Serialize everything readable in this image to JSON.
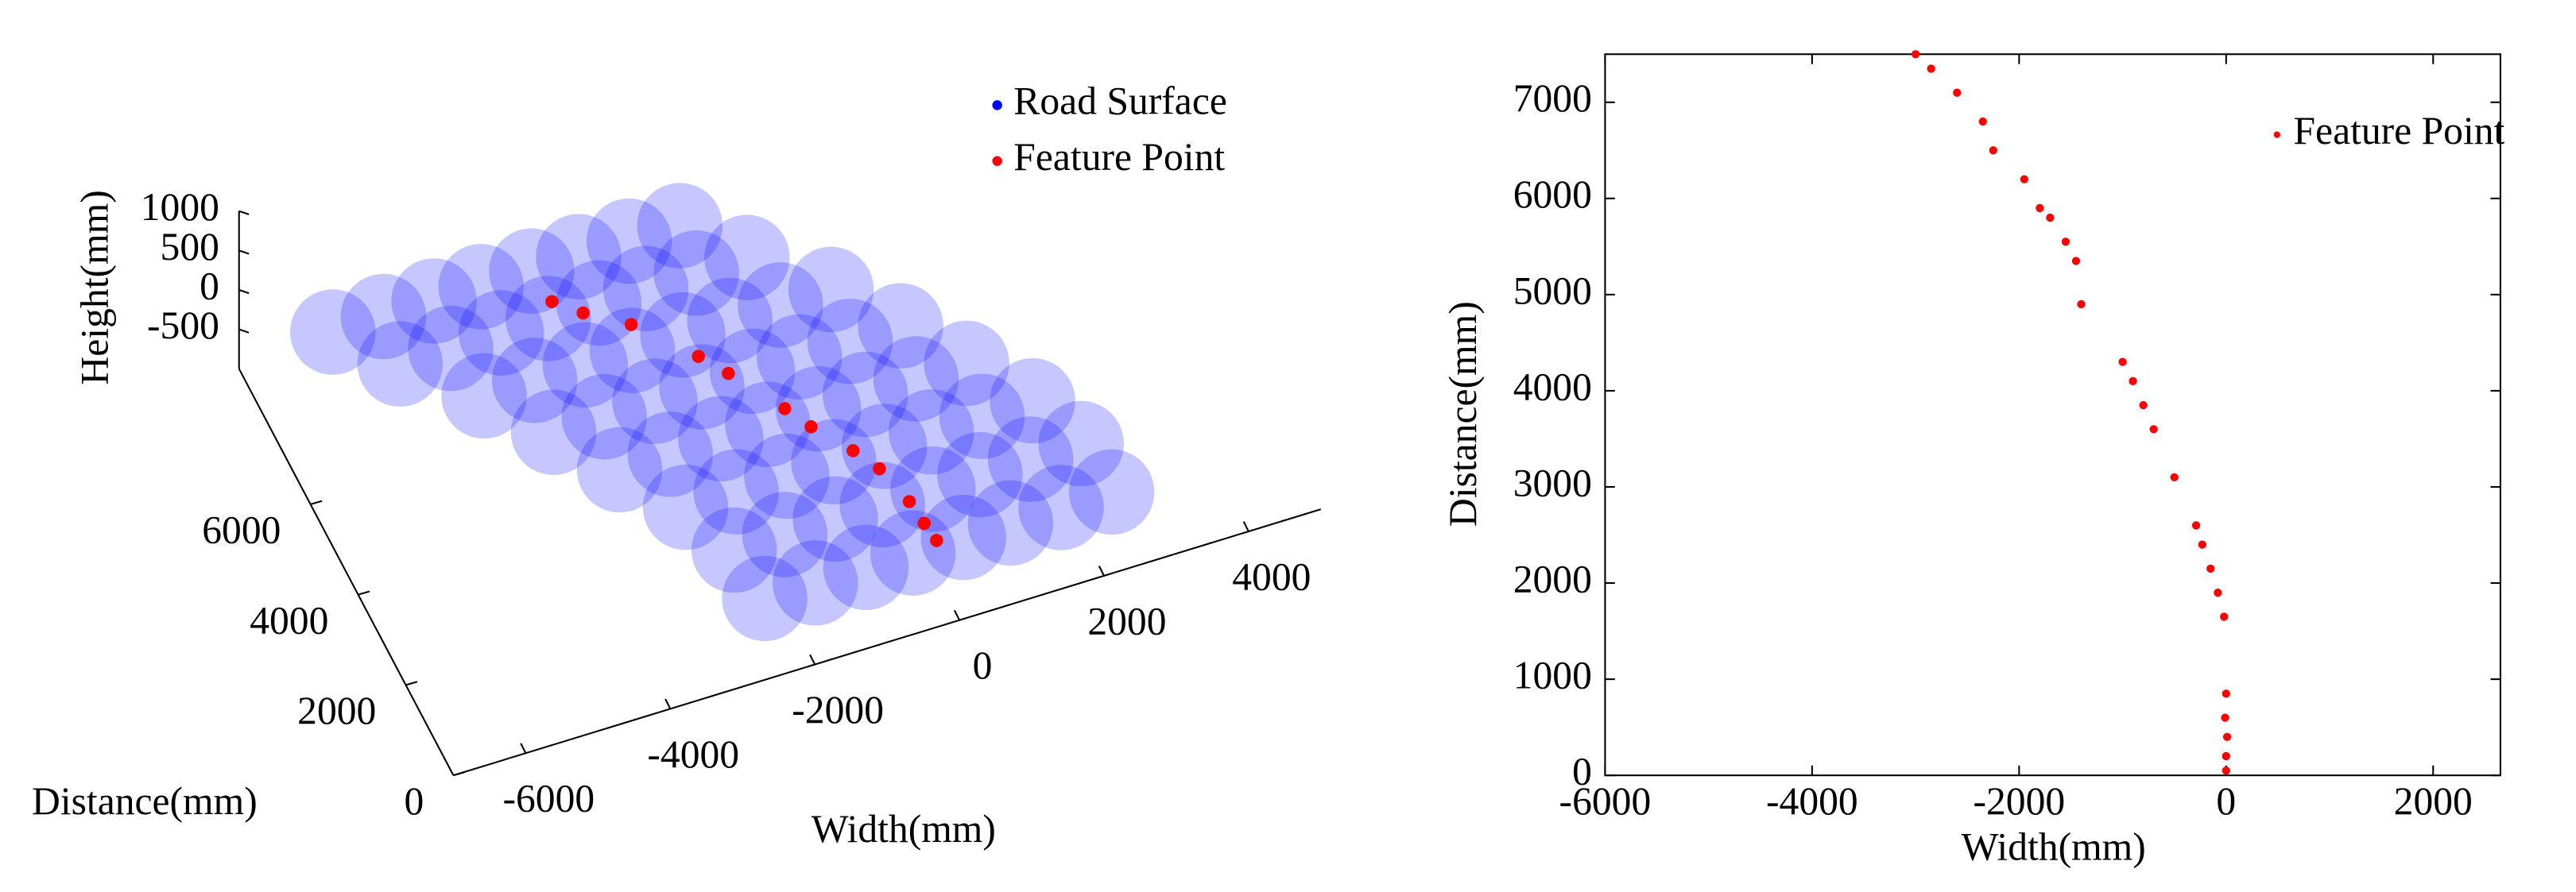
{
  "chart_data": [
    {
      "type": "scatter3d",
      "xlabel": "Width(mm)",
      "ylabel": "Distance(mm)",
      "zlabel": "Height(mm)",
      "xlim": [
        -7000,
        5000
      ],
      "ylim": [
        0,
        9000
      ],
      "zlim": [
        -1000,
        1000
      ],
      "xticks": [
        -6000,
        -4000,
        -2000,
        0,
        2000,
        4000
      ],
      "yticks": [
        0,
        2000,
        4000,
        6000
      ],
      "zticks": [
        -500,
        0,
        500,
        1000
      ],
      "series": [
        {
          "name": "Road Surface",
          "color": "#0000ff",
          "x": [
            -2430,
            -1730,
            -1030,
            -380,
            320,
            970,
            1670,
            2370,
            -2490,
            -1790,
            -1090,
            -440,
            260,
            910,
            1610,
            2310,
            -2800,
            -2100,
            -1400,
            -750,
            -50,
            600,
            1300,
            2000,
            -3350,
            -2650,
            -1950,
            -1300,
            -600,
            50,
            750,
            1450,
            -3900,
            -3200,
            -2500,
            -1850,
            -1150,
            -500,
            200,
            900,
            -4500,
            -3800,
            -3100,
            -2450,
            -1750,
            -1100,
            -400,
            300,
            -5300,
            -4600,
            -3900,
            -3250,
            -2550,
            -1900,
            -1200,
            -500,
            -5900,
            -5200,
            -4500,
            -3850,
            -3150,
            -2500,
            -1800,
            -1100
          ],
          "y": [
            800,
            800,
            800,
            800,
            800,
            800,
            800,
            800,
            1900,
            1900,
            1900,
            1900,
            1900,
            1900,
            1900,
            1900,
            3000,
            3000,
            3000,
            3000,
            3000,
            3000,
            3000,
            3000,
            4100,
            4100,
            4100,
            4100,
            4100,
            4100,
            4100,
            4100,
            5200,
            5200,
            5200,
            5200,
            5200,
            5200,
            5200,
            5200,
            6300,
            6300,
            6300,
            6300,
            6300,
            6300,
            6300,
            6300,
            7400,
            7400,
            7400,
            7400,
            7400,
            7400,
            7400,
            7400,
            8400,
            8400,
            8400,
            8400,
            8400,
            8400,
            8400,
            8400
          ],
          "z": [
            -500,
            -500,
            -500,
            -500,
            -500,
            -500,
            -500,
            -500,
            -500,
            -500,
            -500,
            -500,
            -500,
            -500,
            -500,
            -500,
            -500,
            -500,
            -500,
            -500,
            -500,
            -500,
            -500,
            -500,
            -500,
            -500,
            -500,
            -500,
            -500,
            -500,
            -500,
            -500,
            -500,
            -500,
            -500,
            -500,
            -500,
            -500,
            -500,
            -500,
            -500,
            -500,
            -500,
            -500,
            -500,
            -500,
            -500,
            -500,
            -500,
            -500,
            -500,
            -500,
            -500,
            -500,
            -500,
            -500,
            -500,
            -500,
            -500,
            -500,
            -500,
            -500,
            -500,
            -500
          ]
        },
        {
          "name": "Feature Point",
          "color": "#ff0000",
          "x": [
            -20,
            -60,
            -100,
            -250,
            -450,
            -800,
            -1000,
            -1450,
            -1700,
            -2300,
            -2800,
            -3100
          ],
          "y": [
            900,
            1300,
            1800,
            2600,
            3100,
            3800,
            4300,
            5300,
            5800,
            6800,
            7300,
            7700
          ],
          "z": [
            -500,
            -500,
            -500,
            -500,
            -500,
            -500,
            -500,
            -500,
            -500,
            -500,
            -500,
            -500
          ]
        }
      ]
    },
    {
      "type": "scatter",
      "xlabel": "Width(mm)",
      "ylabel": "Distance(mm)",
      "xlim": [
        -6000,
        2650
      ],
      "ylim": [
        0,
        7500
      ],
      "xticks": [
        -6000,
        -4000,
        -2000,
        0,
        2000
      ],
      "yticks": [
        0,
        1000,
        2000,
        3000,
        4000,
        5000,
        6000,
        7000
      ],
      "series": [
        {
          "name": "Feature Point",
          "color": "#ff0000",
          "x": [
            0,
            0,
            10,
            -10,
            0,
            -20,
            -80,
            -150,
            -230,
            -290,
            -500,
            -700,
            -800,
            -900,
            -1000,
            -1400,
            -1450,
            -1550,
            -1700,
            -1800,
            -1950,
            -2250,
            -2350,
            -2600,
            -2850,
            -3000
          ],
          "y": [
            50,
            200,
            400,
            600,
            850,
            1650,
            1900,
            2150,
            2400,
            2600,
            3100,
            3600,
            3850,
            4100,
            4300,
            4900,
            5350,
            5550,
            5800,
            5900,
            6200,
            6500,
            6800,
            7100,
            7350,
            7500
          ]
        }
      ]
    }
  ]
}
